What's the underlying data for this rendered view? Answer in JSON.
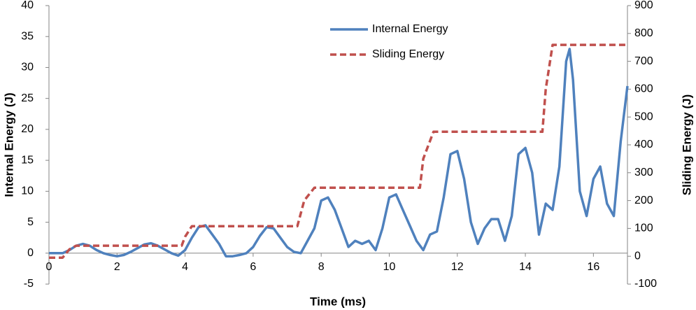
{
  "chart_data": {
    "type": "line",
    "xlabel": "Time (ms)",
    "ylabel": "Internal Energy (J)",
    "y2label": "Sliding Energy (J)",
    "xlim": [
      0,
      17
    ],
    "xticks": [
      0,
      2,
      4,
      6,
      8,
      10,
      12,
      14,
      16
    ],
    "ylim": [
      -5,
      40
    ],
    "yticks": [
      -5,
      0,
      5,
      10,
      15,
      20,
      25,
      30,
      35,
      40
    ],
    "y2lim": [
      -100,
      900
    ],
    "y2ticks": [
      -100,
      0,
      100,
      200,
      300,
      400,
      500,
      600,
      700,
      800,
      900
    ],
    "grid": false,
    "legend": "top-center",
    "series": [
      {
        "name": "Internal Energy",
        "color": "#4f81bd",
        "dashed": false,
        "x": [
          0,
          0.2,
          0.4,
          0.6,
          0.8,
          1.0,
          1.2,
          1.4,
          1.6,
          1.8,
          2.0,
          2.2,
          2.4,
          2.6,
          2.8,
          3.0,
          3.2,
          3.4,
          3.6,
          3.8,
          4.0,
          4.2,
          4.4,
          4.6,
          4.8,
          5.0,
          5.2,
          5.4,
          5.6,
          5.8,
          6.0,
          6.2,
          6.4,
          6.6,
          6.8,
          7.0,
          7.2,
          7.4,
          7.6,
          7.8,
          8.0,
          8.2,
          8.4,
          8.6,
          8.8,
          9.0,
          9.2,
          9.4,
          9.6,
          9.8,
          10.0,
          10.2,
          10.4,
          10.6,
          10.8,
          11.0,
          11.2,
          11.4,
          11.6,
          11.8,
          12.0,
          12.2,
          12.4,
          12.6,
          12.8,
          13.0,
          13.2,
          13.4,
          13.6,
          13.8,
          14.0,
          14.2,
          14.4,
          14.6,
          14.8,
          15.0,
          15.2,
          15.3,
          15.4,
          15.6,
          15.8,
          16.0,
          16.2,
          16.4,
          16.6,
          16.8,
          17.0
        ],
        "values": [
          0,
          0,
          0,
          0.5,
          1.2,
          1.5,
          1.2,
          0.5,
          0,
          -0.3,
          -0.5,
          -0.3,
          0.2,
          0.8,
          1.4,
          1.6,
          1.2,
          0.6,
          0,
          -0.4,
          0.5,
          2.5,
          4.2,
          4.5,
          3,
          1.5,
          -0.5,
          -0.5,
          -0.3,
          0,
          1,
          2.8,
          4.2,
          4,
          2.5,
          1,
          0.2,
          0,
          2,
          4,
          8.5,
          9,
          7,
          4,
          1,
          2,
          1.5,
          2,
          0.5,
          4,
          9,
          9.5,
          7,
          4.5,
          2,
          0.5,
          3,
          3.5,
          9,
          16,
          16.5,
          12,
          5,
          1.5,
          4,
          5.5,
          5.5,
          2,
          6,
          16,
          17,
          13,
          3,
          8,
          7,
          14,
          31,
          33,
          28,
          10,
          6,
          12,
          14,
          8,
          6,
          18,
          27
        ]
      },
      {
        "name": "Sliding Energy",
        "color": "#c0504d",
        "dashed": true,
        "axis": "y2",
        "x": [
          0,
          0.4,
          0.6,
          0.8,
          3.9,
          4.0,
          4.2,
          7.3,
          7.5,
          7.8,
          10.9,
          11.0,
          11.3,
          14.5,
          14.6,
          14.8,
          17.0
        ],
        "values": [
          -5,
          -5,
          25,
          38,
          38,
          70,
          108,
          108,
          200,
          246,
          246,
          350,
          447,
          447,
          600,
          759,
          759
        ]
      }
    ]
  }
}
